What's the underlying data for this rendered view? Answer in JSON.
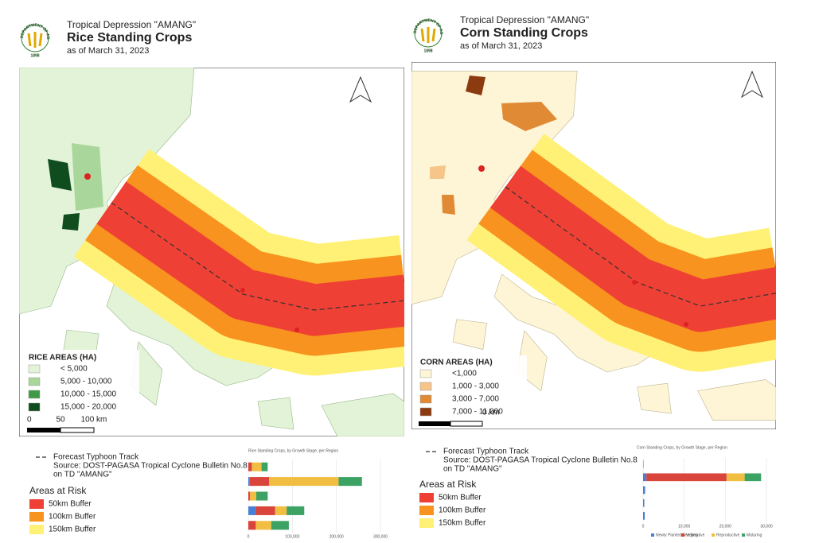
{
  "panels": [
    {
      "logo": {
        "arc": "DEPARTMENT OF AGRICULTURE",
        "year": "1898"
      },
      "header": {
        "subtitle": "Tropical Depression \"AMANG\"",
        "title": "Rice Standing Crops",
        "date": "as of March 31, 2023"
      },
      "map_legend": {
        "title": "RICE AREAS (HA)",
        "items": [
          {
            "label": "< 5,000",
            "color": "#e3f3d8"
          },
          {
            "label": "5,000 - 10,000",
            "color": "#a9d69a"
          },
          {
            "label": "10,000 - 15,000",
            "color": "#3f9a46"
          },
          {
            "label": "15,000 - 20,000",
            "color": "#0f4d1f"
          }
        ]
      },
      "scale_labels": [
        "0",
        "50",
        "100 km"
      ],
      "land_color": "#e3f3d8",
      "track": {
        "label": "Forecast Typhoon Track",
        "source": "Source: DOST-PAGASA Tropical Cyclone Bulletin No.8",
        "source2": "on TD \"AMANG\""
      },
      "risk": {
        "title": "Areas at Risk",
        "items": [
          {
            "label": "50km Buffer",
            "color": "#ef4035"
          },
          {
            "label": "100km Buffer",
            "color": "#f7931e"
          },
          {
            "label": "150km Buffer",
            "color": "#fff176"
          }
        ]
      },
      "chart": {
        "type": "bar",
        "title": "Rice Standing Crops, by Growth Stage, per Region",
        "categories": [
          null,
          null,
          null,
          null,
          null
        ],
        "series": [
          {
            "color": "#4a7fd6",
            "values": [
              0,
              3000,
              0,
              17000,
              0
            ]
          },
          {
            "color": "#d9443b",
            "values": [
              8000,
              44000,
              4000,
              44000,
              17000
            ]
          },
          {
            "color": "#f2be42",
            "values": [
              22000,
              158000,
              14000,
              26000,
              35000
            ]
          },
          {
            "color": "#3da364",
            "values": [
              14000,
              53000,
              26000,
              40000,
              40000
            ]
          }
        ],
        "xlim": [
          0,
          300000
        ],
        "xticks": [
          0,
          {
            "value": 100000,
            "label": "100,000"
          },
          {
            "value": 200000,
            "label": "200,000"
          },
          {
            "value": 300000,
            "label": "300,000"
          }
        ]
      }
    },
    {
      "logo": {
        "arc": "DEPARTMENT OF AGRICULTURE",
        "year": "1898"
      },
      "header": {
        "subtitle": "Tropical Depression \"AMANG\"",
        "title": "Corn Standing Crops",
        "date": "as of March 31, 2023"
      },
      "map_legend": {
        "title": "CORN AREAS (HA)",
        "items": [
          {
            "label": "<1,000",
            "color": "#fdf5d6"
          },
          {
            "label": "1,000 - 3,000",
            "color": "#f6c58a"
          },
          {
            "label": "3,000 - 7,000",
            "color": "#e08a35"
          },
          {
            "label": "7,000 - 11,000",
            "color": "#8c3a0f"
          }
        ]
      },
      "scale_labels": [
        "0 km"
      ],
      "land_color": "#fdf5d6",
      "track": {
        "label": "Forecast Typhoon Track",
        "source": "Source: DOST-PAGASA Tropical Cyclone Bulletin No.8",
        "source2": "on TD \"AMANG\""
      },
      "risk": {
        "title": "Areas at Risk",
        "items": [
          {
            "label": "50km Buffer",
            "color": "#ef4035"
          },
          {
            "label": "100km Buffer",
            "color": "#f7931e"
          },
          {
            "label": "150km Buffer",
            "color": "#fff176"
          }
        ]
      },
      "chart": {
        "type": "bar",
        "title": "Corn Standing Crops, by Growth Stage, per Region",
        "categories": [
          null,
          null,
          null,
          null,
          null
        ],
        "series": [
          {
            "name": "Newly Planted/Seedling",
            "color": "#4a7fd6",
            "values": [
              100,
              800,
              500,
              300,
              400
            ]
          },
          {
            "name": "Vegetative",
            "color": "#d9443b",
            "values": [
              0,
              19500,
              0,
              0,
              0
            ]
          },
          {
            "name": "Reproductive",
            "color": "#f2be42",
            "values": [
              0,
              4400,
              0,
              0,
              0
            ]
          },
          {
            "name": "Maturing",
            "color": "#3da364",
            "values": [
              0,
              4000,
              0,
              0,
              0
            ]
          }
        ],
        "xlim": [
          0,
          30000
        ],
        "xticks": [
          0,
          {
            "value": 10000,
            "label": "10,000"
          },
          {
            "value": 20000,
            "label": "20,000"
          },
          {
            "value": 30000,
            "label": "30,000"
          }
        ]
      }
    }
  ]
}
